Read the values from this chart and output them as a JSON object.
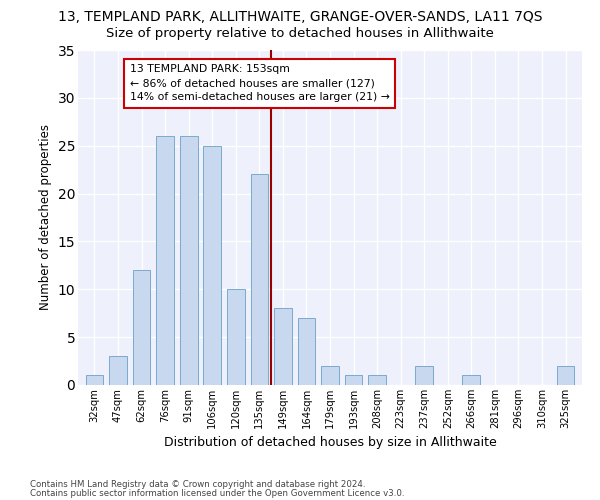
{
  "title": "13, TEMPLAND PARK, ALLITHWAITE, GRANGE-OVER-SANDS, LA11 7QS",
  "subtitle": "Size of property relative to detached houses in Allithwaite",
  "xlabel": "Distribution of detached houses by size in Allithwaite",
  "ylabel": "Number of detached properties",
  "bar_color": "#c8d8ee",
  "bar_edge_color": "#7aaace",
  "categories": [
    "32sqm",
    "47sqm",
    "62sqm",
    "76sqm",
    "91sqm",
    "106sqm",
    "120sqm",
    "135sqm",
    "149sqm",
    "164sqm",
    "179sqm",
    "193sqm",
    "208sqm",
    "223sqm",
    "237sqm",
    "252sqm",
    "266sqm",
    "281sqm",
    "296sqm",
    "310sqm",
    "325sqm"
  ],
  "values": [
    1,
    3,
    12,
    26,
    26,
    25,
    10,
    22,
    8,
    7,
    2,
    1,
    1,
    0,
    2,
    0,
    1,
    0,
    0,
    0,
    2
  ],
  "vline_x": 7.5,
  "vline_color": "#990000",
  "annotation_text": "13 TEMPLAND PARK: 153sqm\n← 86% of detached houses are smaller (127)\n14% of semi-detached houses are larger (21) →",
  "annotation_box_color": "#ffffff",
  "annotation_edge_color": "#cc0000",
  "ylim": [
    0,
    35
  ],
  "yticks": [
    0,
    5,
    10,
    15,
    20,
    25,
    30,
    35
  ],
  "footer1": "Contains HM Land Registry data © Crown copyright and database right 2024.",
  "footer2": "Contains public sector information licensed under the Open Government Licence v3.0.",
  "bg_color": "#eef1fb",
  "title_fontsize": 10,
  "subtitle_fontsize": 9.5,
  "bar_width": 0.75
}
